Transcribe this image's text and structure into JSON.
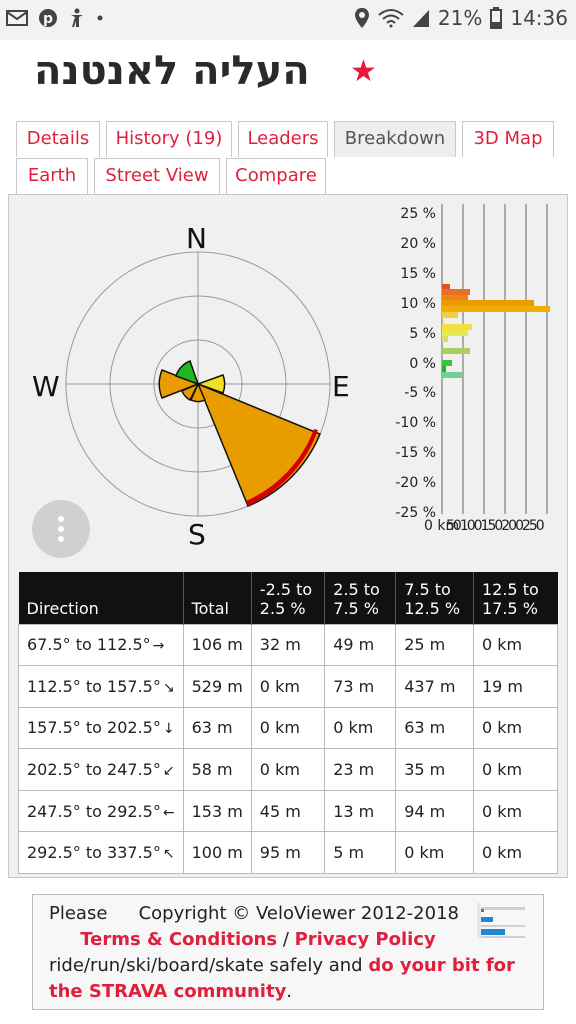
{
  "status_bar": {
    "battery": "21%",
    "time": "14:36",
    "icons": [
      "mail-icon",
      "pinterest-icon",
      "accessibility-icon",
      "dot-icon",
      "location-icon",
      "wifi-icon",
      "signal-icon",
      "battery-icon"
    ]
  },
  "header": {
    "title": "העליה לאנטנה",
    "star_icon": "star-icon",
    "star_color": "#e8183a"
  },
  "tabs": [
    {
      "label": "Details"
    },
    {
      "label": "History (19)"
    },
    {
      "label": "Leaders"
    },
    {
      "label": "Breakdown",
      "active": true
    },
    {
      "label": "3D Map"
    },
    {
      "label": "Earth"
    },
    {
      "label": "Street View"
    },
    {
      "label": "Compare"
    }
  ],
  "compass": {
    "n": "N",
    "e": "E",
    "s": "S",
    "w": "W"
  },
  "menu_button_icon": "more-vertical-icon",
  "histogram": {
    "y_ticks": [
      "25 %",
      "20 %",
      "15 %",
      "10 %",
      "5 %",
      "0 %",
      "-5 %",
      "-10 %",
      "-15 %",
      "-20 %",
      "-25 %"
    ],
    "x_label": "0 km",
    "x_ticks_overlap": "50100150200250"
  },
  "table": {
    "headers": [
      "Direction",
      "Total",
      "-2.5 to 2.5 %",
      "2.5 to 7.5 %",
      "7.5 to 12.5 %",
      "12.5 to 17.5 %"
    ],
    "rows": [
      {
        "direction": "67.5° to 112.5°",
        "arrow": "→",
        "total": "106 m",
        "c1": "32 m",
        "c2": "49 m",
        "c3": "25 m",
        "c4": "0 km"
      },
      {
        "direction": "112.5° to 157.5°",
        "arrow": "↘",
        "total": "529 m",
        "c1": "0 km",
        "c2": "73 m",
        "c3": "437 m",
        "c4": "19 m"
      },
      {
        "direction": "157.5° to 202.5°",
        "arrow": "↓",
        "total": "63 m",
        "c1": "0 km",
        "c2": "0 km",
        "c3": "63 m",
        "c4": "0 km"
      },
      {
        "direction": "202.5° to 247.5°",
        "arrow": "↙",
        "total": "58 m",
        "c1": "0 km",
        "c2": "23 m",
        "c3": "35 m",
        "c4": "0 km"
      },
      {
        "direction": "247.5° to 292.5°",
        "arrow": "←",
        "total": "153 m",
        "c1": "45 m",
        "c2": "13 m",
        "c3": "94 m",
        "c4": "0 km"
      },
      {
        "direction": "292.5° to 337.5°",
        "arrow": "↖",
        "total": "100 m",
        "c1": "95 m",
        "c2": "5 m",
        "c3": "0 km",
        "c4": "0 km"
      }
    ]
  },
  "footer": {
    "please": "Please",
    "copyright": "Copyright © VeloViewer 2012-2018",
    "terms": "Terms & Conditions",
    "sep": " / ",
    "privacy": "Privacy Policy",
    "text_before": "ride/run/ski/board/skate safely and ",
    "doyourbit": "do your bit for the STRAVA community",
    "period": "."
  },
  "colors": {
    "accent": "#e01f3d",
    "rose_orange": "#e89c00",
    "rose_red": "#d40000",
    "rose_green": "#1fb81f",
    "rose_yellow": "#f0e020"
  }
}
